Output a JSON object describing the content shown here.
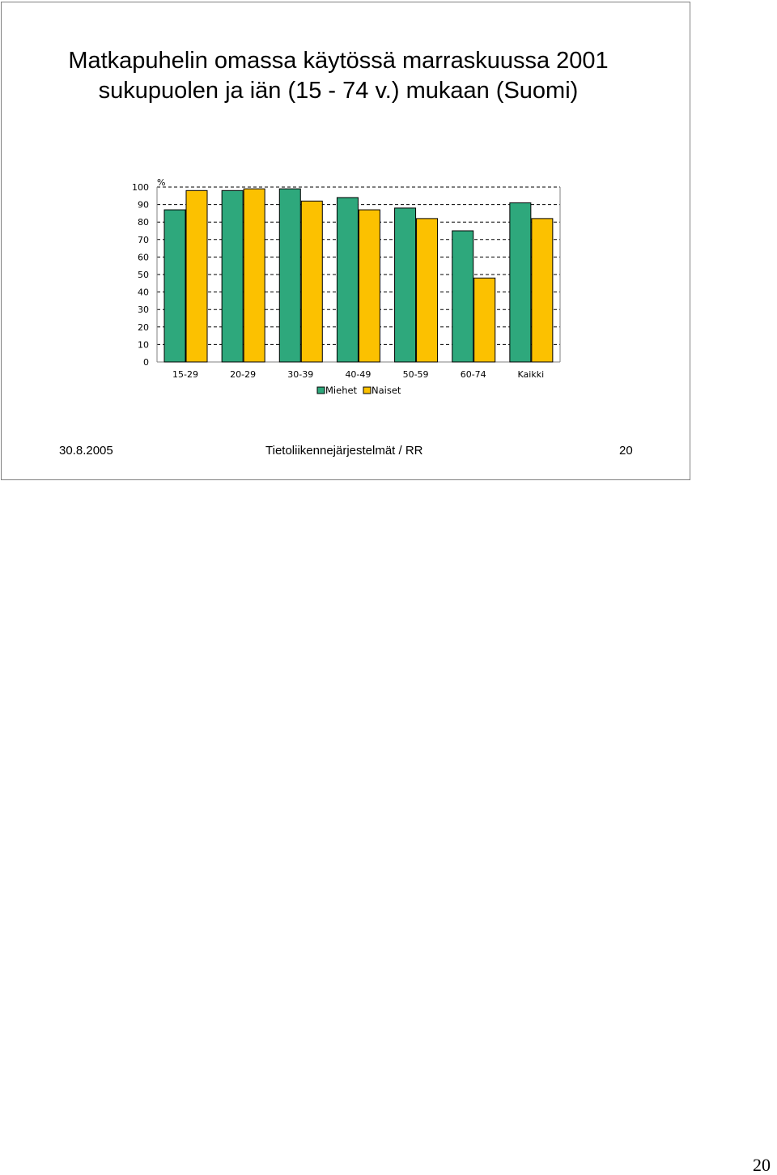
{
  "slide": {
    "title_lines": [
      "Matkapuhelin omassa käytössä marraskuussa 2001",
      "sukupuolen ja iän (15 - 74 v.) mukaan (Suomi)"
    ],
    "footer_date": "30.8.2005",
    "footer_center": "Tietoliikennejärjestelmät / RR",
    "footer_number": "20"
  },
  "page_number": "20",
  "colors": {
    "Miehet": "#2ea87c",
    "Naiset": "#fcc100",
    "grid": "#000000",
    "axis": "#808080"
  },
  "chart_data": {
    "type": "bar",
    "title": "",
    "xlabel": "",
    "ylabel": "%",
    "ylim": [
      0,
      100
    ],
    "yticks": [
      0,
      10,
      20,
      30,
      40,
      50,
      60,
      70,
      80,
      90,
      100
    ],
    "grid": true,
    "legend_position": "bottom",
    "categories": [
      "15-29",
      "20-29",
      "30-39",
      "40-49",
      "50-59",
      "60-74",
      "Kaikki"
    ],
    "series": [
      {
        "name": "Miehet",
        "values": [
          87,
          98,
          99,
          94,
          88,
          75,
          91
        ]
      },
      {
        "name": "Naiset",
        "values": [
          98,
          99,
          92,
          87,
          82,
          48,
          82
        ]
      }
    ]
  }
}
